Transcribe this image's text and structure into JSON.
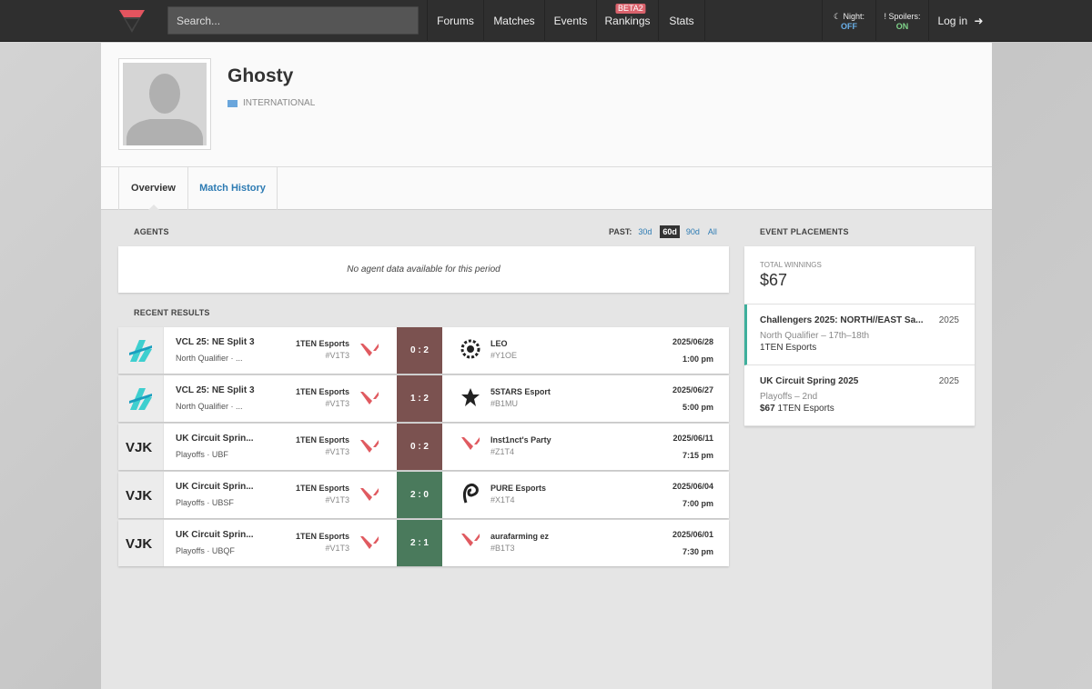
{
  "nav": {
    "search_placeholder": "Search...",
    "items": [
      "Forums",
      "Matches",
      "Events",
      "Rankings",
      "Stats"
    ],
    "beta_badge": "BETA2",
    "night_label": "Night:",
    "night_state": "OFF",
    "spoilers_label": "Spoilers:",
    "spoilers_state": "ON",
    "login_label": "Log in"
  },
  "profile": {
    "name": "Ghosty",
    "country": "INTERNATIONAL"
  },
  "tabs": [
    "Overview",
    "Match History"
  ],
  "agents": {
    "title": "AGENTS",
    "past_label": "PAST:",
    "past_options": [
      "30d",
      "60d",
      "90d",
      "All"
    ],
    "selected": "60d",
    "empty_message": "No agent data available for this period"
  },
  "recent": {
    "title": "RECENT RESULTS",
    "rows": [
      {
        "event": "VCL 25: NE Split 3",
        "sub": "North Qualifier · ...",
        "team": "1TEN Esports",
        "tag": "#V1T3",
        "score": "0 : 2",
        "result": "loss",
        "opp": "LEO",
        "opp_tag": "#Y1OE",
        "date": "2025/06/28",
        "time": "1:00 pm"
      },
      {
        "event": "VCL 25: NE Split 3",
        "sub": "North Qualifier · ...",
        "team": "1TEN Esports",
        "tag": "#V1T3",
        "score": "1 : 2",
        "result": "loss",
        "opp": "5STARS Esport",
        "opp_tag": "#B1MU",
        "date": "2025/06/27",
        "time": "5:00 pm"
      },
      {
        "event": "UK Circuit Sprin...",
        "sub": "Playoffs · UBF",
        "team": "1TEN Esports",
        "tag": "#V1T3",
        "score": "0 : 2",
        "result": "loss",
        "opp": "Inst1nct's Party",
        "opp_tag": "#Z1T4",
        "date": "2025/06/11",
        "time": "7:15 pm"
      },
      {
        "event": "UK Circuit Sprin...",
        "sub": "Playoffs · UBSF",
        "team": "1TEN Esports",
        "tag": "#V1T3",
        "score": "2 : 0",
        "result": "win",
        "opp": "PURE Esports",
        "opp_tag": "#X1T4",
        "date": "2025/06/04",
        "time": "7:00 pm"
      },
      {
        "event": "UK Circuit Sprin...",
        "sub": "Playoffs · UBQF",
        "team": "1TEN Esports",
        "tag": "#V1T3",
        "score": "2 : 1",
        "result": "win",
        "opp": "aurafarming ez",
        "opp_tag": "#B1T3",
        "date": "2025/06/01",
        "time": "7:30 pm"
      }
    ]
  },
  "placements": {
    "title": "EVENT PLACEMENTS",
    "winnings_label": "TOTAL WINNINGS",
    "winnings_value": "$67",
    "items": [
      {
        "event": "Challengers 2025: NORTH//EAST Sa...",
        "year": "2025",
        "stage": "North Qualifier – 17th–18th",
        "prize": "",
        "team": "1TEN Esports"
      },
      {
        "event": "UK Circuit Spring 2025",
        "year": "2025",
        "stage": "Playoffs – 2nd",
        "prize": "$67",
        "team": "1TEN Esports"
      }
    ]
  },
  "colors": {
    "loss": "#7b5250",
    "win": "#4a7a5c",
    "accent": "#3eaf9c",
    "brand": "#da626c"
  }
}
